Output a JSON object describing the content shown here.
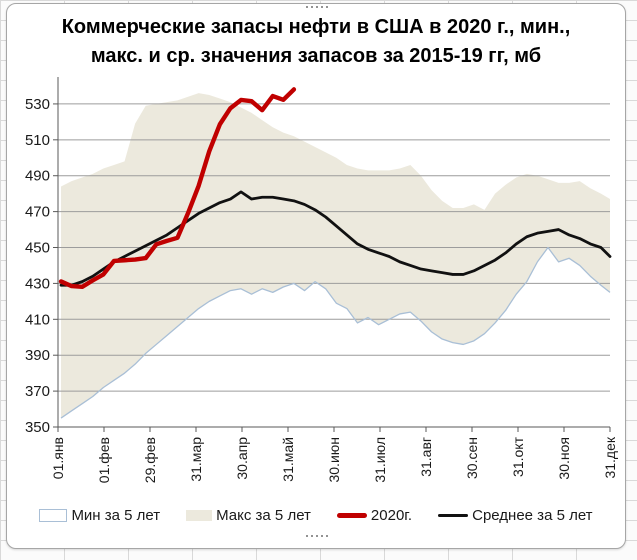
{
  "title": {
    "line1": "Коммерческие запасы нефти в США в 2020 г., мин.,",
    "line2": "макс. и ср. значения запасов за 2015-19 гг, мб"
  },
  "legend": {
    "items": [
      {
        "label": "Мин за 5 лет",
        "marker": "box-outline",
        "color": "#a9bfd6",
        "fill": "#ffffff"
      },
      {
        "label": "Макс за 5 лет",
        "marker": "box-fill",
        "color": "#ece9dd",
        "fill": "#ece9dd"
      },
      {
        "label": "2020г.",
        "marker": "line-thick",
        "color": "#c00000",
        "fill": "#c00000"
      },
      {
        "label": "Среднее за 5 лет",
        "marker": "line",
        "color": "#111111",
        "fill": "#111111"
      }
    ]
  },
  "chart_data": {
    "type": "line",
    "title": "Коммерческие запасы нефти в США в 2020 г., мин., макс. и ср. значения запасов за 2015-19 гг, мб",
    "xlabel": "",
    "ylabel": "",
    "ylim": [
      350,
      545
    ],
    "yticks": [
      350,
      370,
      390,
      410,
      430,
      450,
      470,
      490,
      510,
      530
    ],
    "x_tick_labels": [
      "01.янв",
      "01.фев",
      "29.фев",
      "31.мар",
      "30.апр",
      "31.май",
      "30.июн",
      "31.июл",
      "31.авг",
      "30.сен",
      "31.окт",
      "30.ноя",
      "31.дек"
    ],
    "grid": true,
    "legend_position": "bottom",
    "points_interval_days": 7,
    "series": [
      {
        "name": "Мин за 5 лет",
        "role": "min-line",
        "color": "#a9bfd6",
        "values": [
          355,
          359,
          363,
          367,
          372,
          376,
          380,
          385,
          391,
          396,
          401,
          406,
          411,
          416,
          420,
          423,
          426,
          427,
          424,
          427,
          425,
          428,
          430,
          426,
          431,
          427,
          419,
          416,
          408,
          411,
          407,
          410,
          413,
          414,
          409,
          403,
          399,
          397,
          396,
          398,
          402,
          408,
          415,
          424,
          431,
          442,
          450,
          442,
          444,
          440,
          434,
          429,
          425
        ]
      },
      {
        "name": "Макс за 5 лет",
        "role": "max-band",
        "color": "#ece9dd",
        "values": [
          484,
          487,
          489,
          491,
          494,
          496,
          498,
          519,
          529,
          530,
          531,
          532,
          534,
          536,
          535,
          533,
          531,
          528,
          525,
          521,
          517,
          514,
          512,
          509,
          506,
          503,
          500,
          496,
          494,
          493,
          493,
          493,
          494,
          496,
          490,
          482,
          476,
          472,
          472,
          474,
          471,
          480,
          485,
          489,
          491,
          490,
          488,
          486,
          486,
          487,
          483,
          480,
          477
        ]
      },
      {
        "name": "Среднее за 5 лет",
        "role": "avg-line",
        "color": "#111111",
        "values": [
          429,
          429,
          431,
          434,
          438,
          442,
          445,
          448,
          451,
          454,
          457,
          461,
          465,
          469,
          472,
          475,
          477,
          481,
          477,
          478,
          478,
          477,
          476,
          474,
          471,
          467,
          462,
          457,
          452,
          449,
          447,
          445,
          442,
          440,
          438,
          437,
          436,
          435,
          435,
          437,
          440,
          443,
          447,
          452,
          456,
          458,
          459,
          460,
          457,
          455,
          452,
          450,
          445
        ]
      },
      {
        "name": "2020г.",
        "role": "line-2020",
        "color": "#c00000",
        "values": [
          431.1,
          428.5,
          428.1,
          431.7,
          435.0,
          442.5,
          442.9,
          443.3,
          444.1,
          451.8,
          453.7,
          455.4,
          469.2,
          484.4,
          503.6,
          518.6,
          527.6,
          532.2,
          531.5,
          526.5,
          534.4,
          532.3,
          538.1
        ]
      }
    ],
    "colors": {
      "grid": "#9c9c9c",
      "axis": "#595959",
      "band_fill": "#ece9dd",
      "min_line": "#a9bfd6",
      "avg_line": "#111111",
      "line_2020": "#c00000"
    }
  }
}
